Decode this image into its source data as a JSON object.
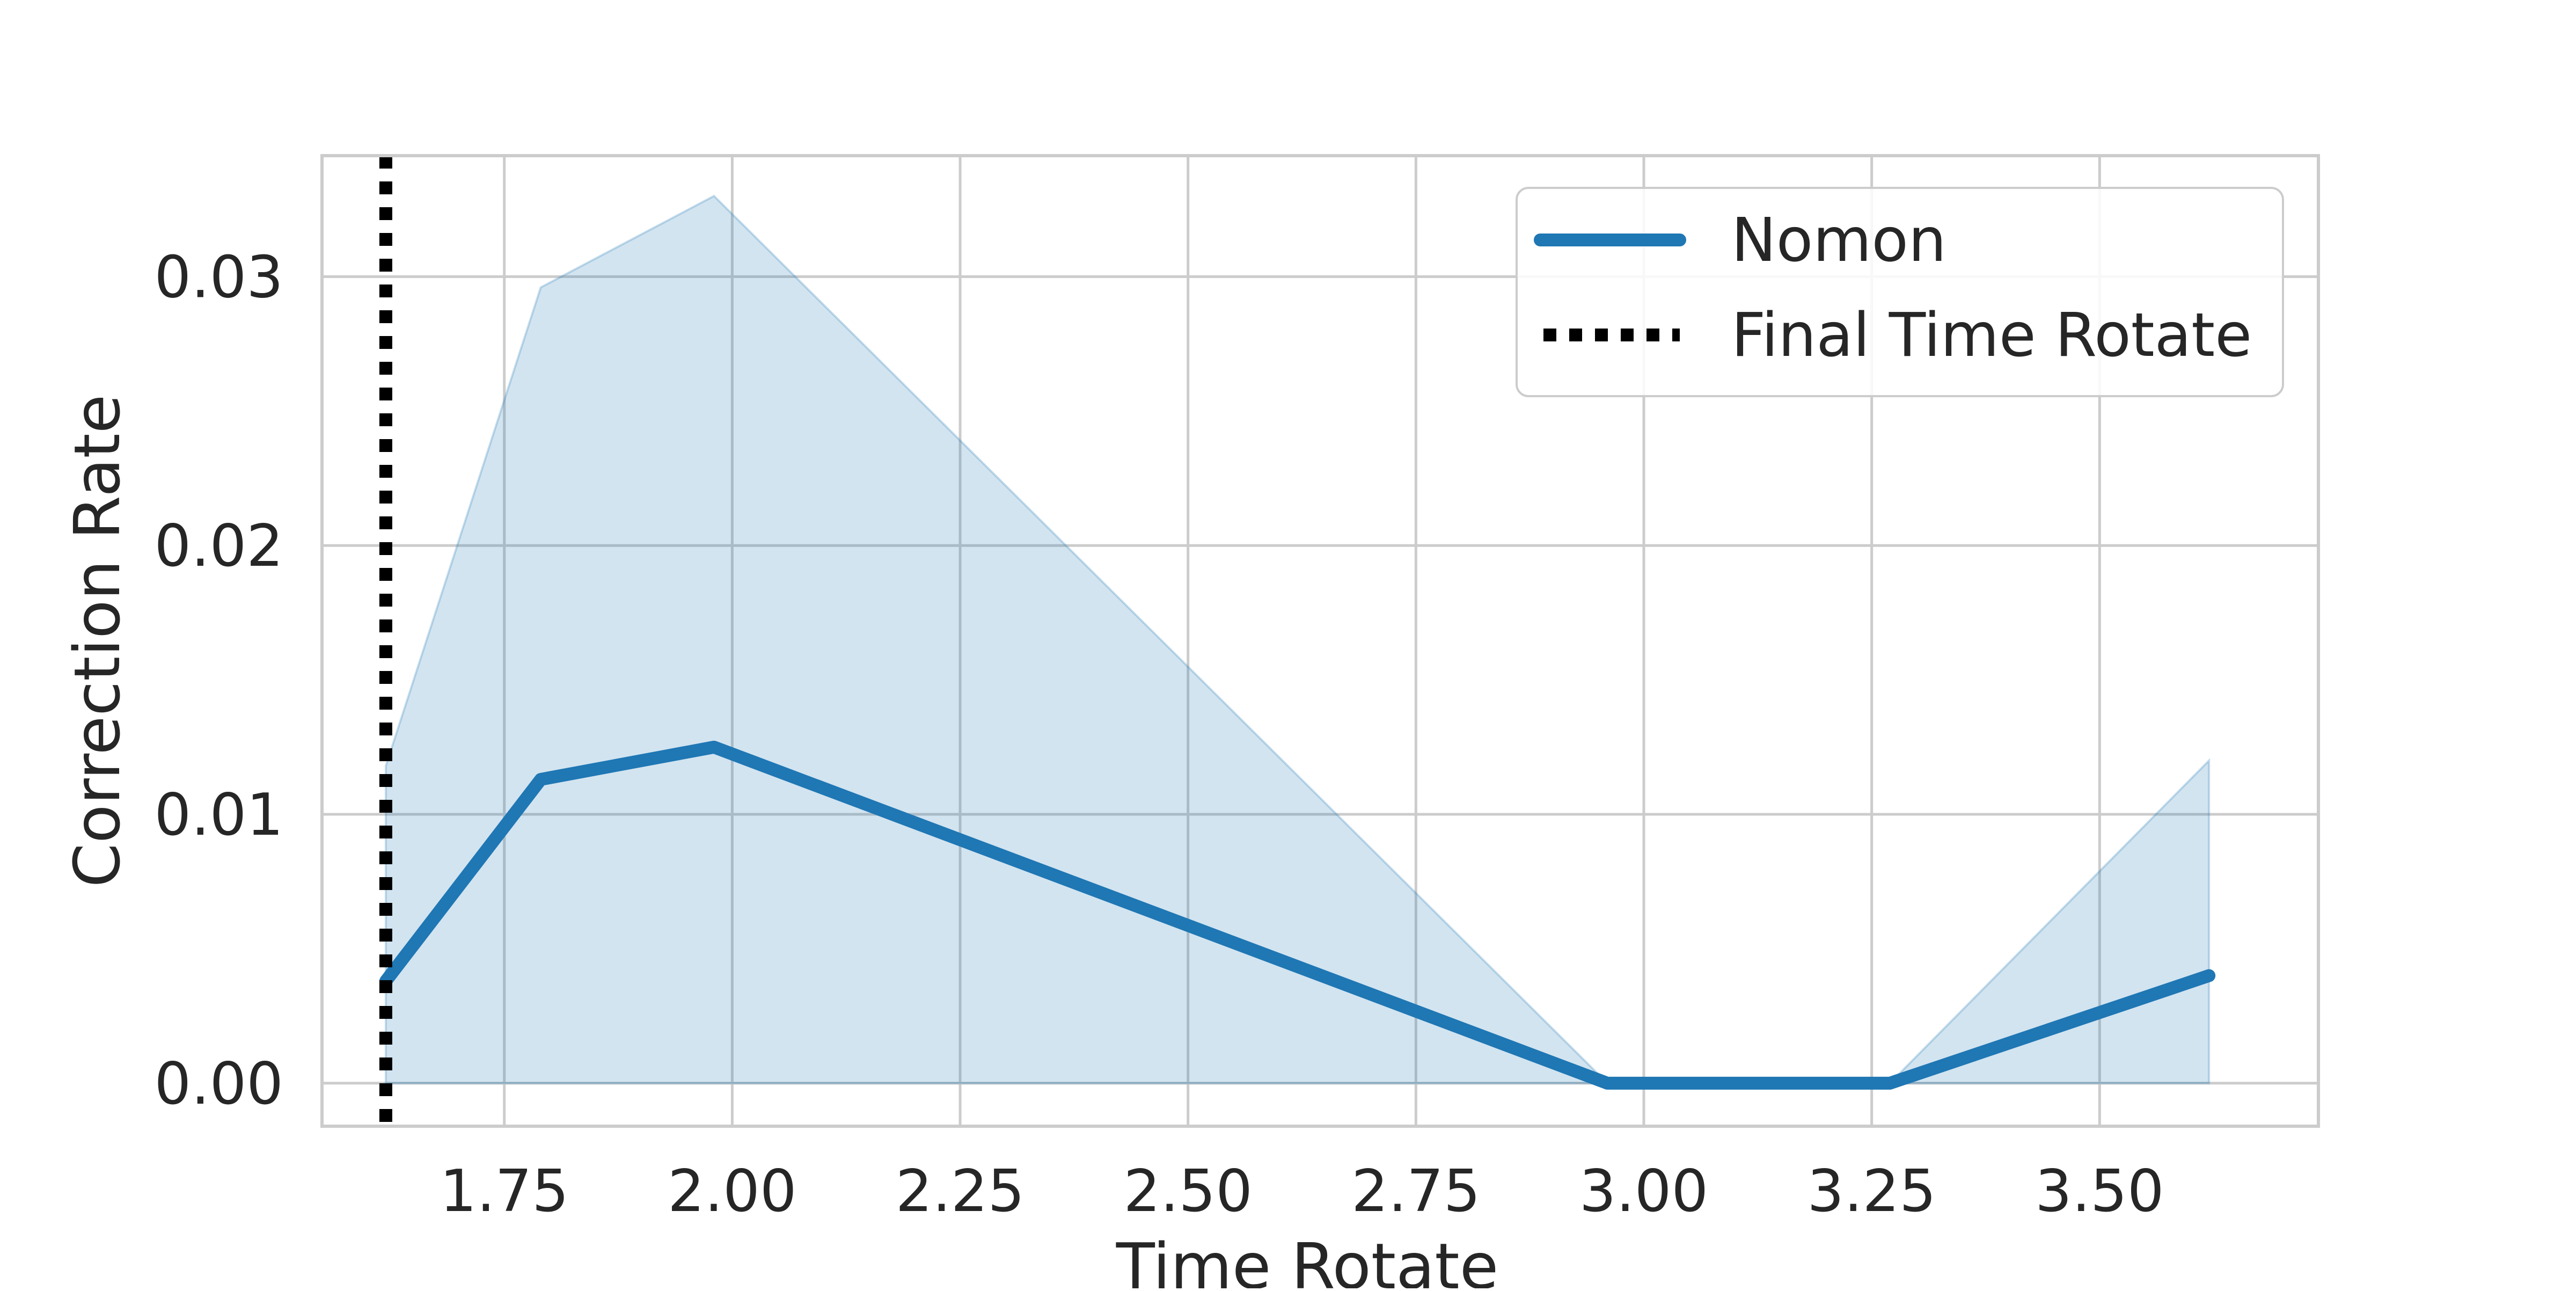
{
  "chart_data": {
    "type": "line",
    "title": "",
    "xlabel": "Time Rotate",
    "ylabel": "Correction Rate",
    "xlim": [
      1.55,
      3.74
    ],
    "ylim": [
      -0.0016,
      0.0345
    ],
    "xticks": [
      1.75,
      2.0,
      2.25,
      2.5,
      2.75,
      3.0,
      3.25,
      3.5
    ],
    "xtick_labels": [
      "1.75",
      "2.00",
      "2.25",
      "2.50",
      "2.75",
      "3.00",
      "3.25",
      "3.50"
    ],
    "yticks": [
      0.0,
      0.01,
      0.02,
      0.03
    ],
    "ytick_labels": [
      "0.00",
      "0.01",
      "0.02",
      "0.03"
    ],
    "grid": true,
    "legend_position": "top-right",
    "series": [
      {
        "name": "Nomon",
        "color": "#1f77b4",
        "x": [
          1.62,
          1.79,
          1.98,
          2.96,
          3.27,
          3.62
        ],
        "y": [
          0.0038,
          0.0113,
          0.0125,
          0.0,
          0.0,
          0.004
        ],
        "ci_lower": [
          0.0,
          0.0,
          0.0,
          0.0,
          0.0,
          0.0
        ],
        "ci_upper": [
          0.0118,
          0.0296,
          0.033,
          0.0,
          0.0,
          0.012
        ]
      }
    ],
    "vline": {
      "name": "Final Time Rotate",
      "x": 1.62,
      "color": "#000000",
      "style": "dotted"
    }
  }
}
